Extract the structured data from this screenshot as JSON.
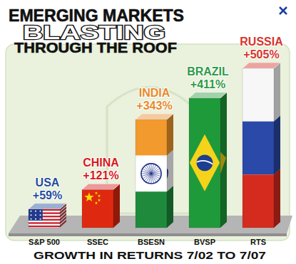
{
  "chart_data": {
    "type": "bar",
    "title": "EMERGING MARKETS\nBLASTING\nTHROUGH THE ROOF",
    "x_label": "GROWTH IN RETURNS 7/02 TO 7/07",
    "categories": [
      "S&P 500",
      "SSEC",
      "BSESN",
      "BVSP",
      "RTS"
    ],
    "values": [
      59,
      121,
      343,
      411,
      505
    ],
    "value_labels": [
      "+59%",
      "+121%",
      "+343%",
      "+411%",
      "+505%"
    ],
    "annotations": [
      "USA",
      "CHINA",
      "INDIA",
      "BRAZIL",
      "RUSSIA"
    ],
    "colors": [
      "#1f4e9c",
      "#d7191c",
      "#e8892a",
      "#2e9a45",
      "#d8342c"
    ],
    "ylim": [
      0,
      505
    ],
    "data_labels": true,
    "tick_labels": "x",
    "grid": false
  }
}
